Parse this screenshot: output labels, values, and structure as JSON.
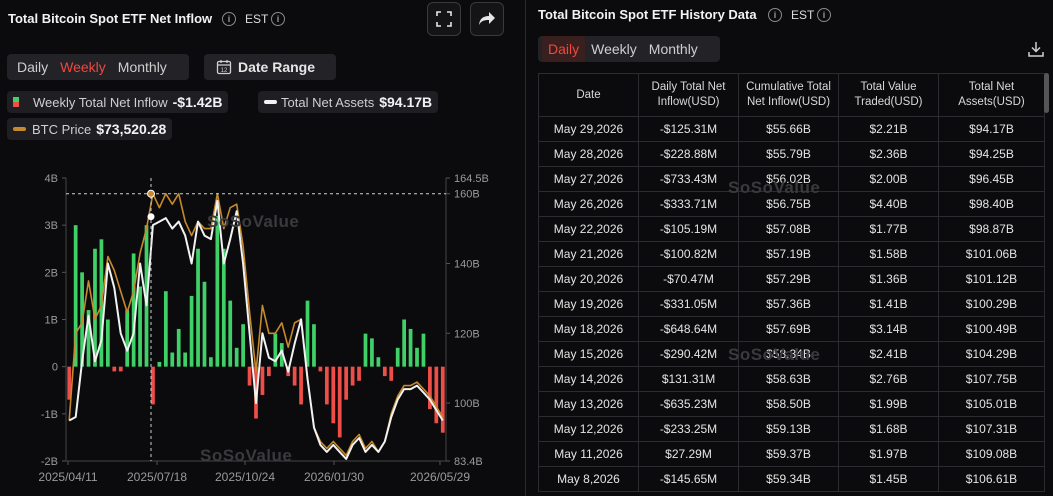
{
  "left": {
    "title": "Total Bitcoin Spot ETF Net Inflow",
    "timezone": "EST",
    "tabs": [
      "Daily",
      "Weekly",
      "Monthly"
    ],
    "active_tab": "Weekly",
    "date_range_label": "Date Range",
    "legend": {
      "inflow_label": "Weekly Total Net Inflow",
      "inflow_value": "-$1.42B",
      "assets_label": "Total Net Assets",
      "assets_value": "$94.17B",
      "btc_label": "BTC Price",
      "btc_value": "$73,520.28"
    },
    "watermark": "SoSoValue"
  },
  "chart_data": {
    "type": "bar",
    "x_tick_labels": [
      "2025/04/11",
      "2025/07/18",
      "2025/10/24",
      "2026/01/30",
      "2026/05/29"
    ],
    "y_left_ticks": [
      "4B",
      "3B",
      "2B",
      "1B",
      "0",
      "-1B",
      "-2B"
    ],
    "y_left_range": [
      -2,
      4
    ],
    "y_right_ticks": [
      "164.5B",
      "160B",
      "140B",
      "120B",
      "100B",
      "83.4B"
    ],
    "y_right_range": [
      83.4,
      164.5
    ],
    "series": [
      {
        "name": "Weekly Total Net Inflow",
        "unit": "B USD",
        "values": [
          -0.7,
          3,
          2,
          1.2,
          2.5,
          2.7,
          1,
          -0.1,
          -0.1,
          1.2,
          2.4,
          1.7,
          3,
          -0.8,
          0.1,
          1.6,
          0.3,
          0.8,
          0.3,
          1.5,
          2.5,
          1.8,
          0.2,
          3.2,
          2.5,
          1.4,
          0.4,
          0.9,
          -0.4,
          -1.1,
          -0.6,
          -0.2,
          0.7,
          0.5,
          -0.2,
          -0.4,
          -0.8,
          1.4,
          0.9,
          -0.1,
          -0.8,
          -1.2,
          -1.5,
          -0.7,
          -0.4,
          -0.3,
          0.7,
          0.6,
          0.2,
          -0.2,
          -0.3,
          0.4,
          1,
          0.8,
          0.4,
          0.7,
          -0.9,
          -1.2,
          -1.4
        ]
      },
      {
        "name": "Total Net Assets",
        "unit": "B USD",
        "values": [
          95,
          96,
          112,
          125,
          112,
          118,
          140,
          133,
          120,
          115,
          120,
          140,
          128,
          151,
          152,
          153,
          150,
          152,
          148,
          140,
          152,
          148,
          147,
          158,
          140,
          147,
          155,
          140,
          120,
          100,
          120,
          113,
          112,
          115,
          109,
          117,
          124,
          107,
          93,
          88,
          86,
          88,
          86,
          84,
          88,
          90,
          86,
          88,
          86,
          89,
          96,
          101,
          104,
          104,
          105,
          103,
          101,
          98,
          95
        ]
      },
      {
        "name": "BTC Price",
        "unit": "B USD (right axis)",
        "values": [
          95,
          120,
          123,
          135,
          124,
          128,
          142,
          138,
          132,
          126,
          132,
          143,
          150,
          160,
          156,
          160,
          157,
          160,
          152,
          148,
          152,
          150,
          150,
          160,
          150,
          156,
          157,
          145,
          126,
          109,
          128,
          120,
          120,
          123,
          116,
          123,
          124,
          107,
          93,
          89,
          87,
          89,
          87,
          85,
          89,
          91,
          87,
          89,
          86,
          89,
          97,
          102,
          105,
          105,
          106,
          104,
          102,
          99,
          96
        ]
      }
    ],
    "crosshair": {
      "x_label": "2025/07/18",
      "y_right": 160
    },
    "legend_position": "top-left",
    "colors": {
      "positive": "#3fd068",
      "negative": "#ef4d48",
      "assets": "#f2f2f2",
      "btc": "#c68a2c"
    }
  },
  "right": {
    "title": "Total Bitcoin Spot ETF History Data",
    "timezone": "EST",
    "tabs": [
      "Daily",
      "Weekly",
      "Monthly"
    ],
    "active_tab": "Daily",
    "columns": [
      "Date",
      "Daily Total Net Inflow(USD)",
      "Cumulative Total Net Inflow(USD)",
      "Total Value Traded(USD)",
      "Total Net Assets(USD)"
    ],
    "rows": [
      [
        "May 29,2026",
        "-$125.31M",
        "$55.66B",
        "$2.21B",
        "$94.17B"
      ],
      [
        "May 28,2026",
        "-$228.88M",
        "$55.79B",
        "$2.36B",
        "$94.25B"
      ],
      [
        "May 27,2026",
        "-$733.43M",
        "$56.02B",
        "$2.00B",
        "$96.45B"
      ],
      [
        "May 26,2026",
        "-$333.71M",
        "$56.75B",
        "$4.40B",
        "$98.40B"
      ],
      [
        "May 22,2026",
        "-$105.19M",
        "$57.08B",
        "$1.77B",
        "$98.87B"
      ],
      [
        "May 21,2026",
        "-$100.82M",
        "$57.19B",
        "$1.58B",
        "$101.06B"
      ],
      [
        "May 20,2026",
        "-$70.47M",
        "$57.29B",
        "$1.36B",
        "$101.12B"
      ],
      [
        "May 19,2026",
        "-$331.05M",
        "$57.36B",
        "$1.41B",
        "$100.29B"
      ],
      [
        "May 18,2026",
        "-$648.64M",
        "$57.69B",
        "$3.14B",
        "$100.49B"
      ],
      [
        "May 15,2026",
        "-$290.42M",
        "$58.34B",
        "$2.41B",
        "$104.29B"
      ],
      [
        "May 14,2026",
        "$131.31M",
        "$58.63B",
        "$2.76B",
        "$107.75B"
      ],
      [
        "May 13,2026",
        "-$635.23M",
        "$58.50B",
        "$1.99B",
        "$105.01B"
      ],
      [
        "May 12,2026",
        "-$233.25M",
        "$59.13B",
        "$1.68B",
        "$107.31B"
      ],
      [
        "May 11,2026",
        "$27.29M",
        "$59.37B",
        "$1.97B",
        "$109.08B"
      ],
      [
        "May 8,2026",
        "-$145.65M",
        "$59.34B",
        "$1.45B",
        "$106.61B"
      ]
    ]
  }
}
